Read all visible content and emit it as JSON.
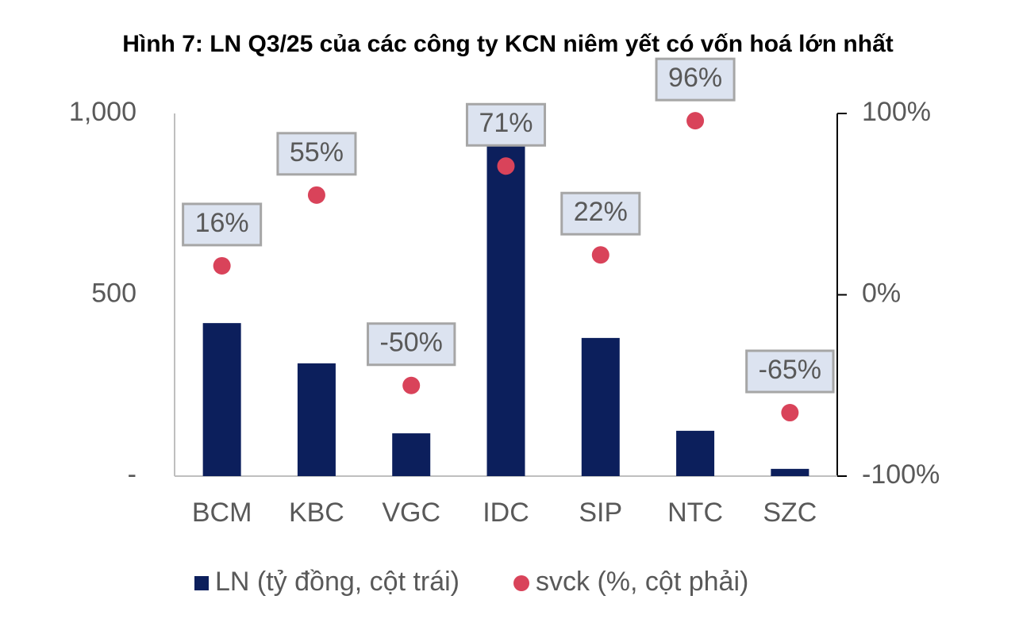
{
  "chart_data": {
    "type": "bar",
    "title": "Hình 7: LN Q3/25 của các công ty KCN niêm yết có vốn hoá lớn nhất",
    "categories": [
      "BCM",
      "KBC",
      "VGC",
      "IDC",
      "SIP",
      "NTC",
      "SZC"
    ],
    "series": [
      {
        "name": "LN (tỷ đồng, cột trái)",
        "type": "bar",
        "color": "#0c1f5c",
        "values": [
          422,
          311,
          118,
          930,
          381,
          125,
          20
        ]
      },
      {
        "name": "svck (%, cột phải)",
        "type": "scatter",
        "axis": "y2",
        "color": "#d9435a",
        "values": [
          16,
          55,
          -50,
          71,
          22,
          96,
          -65
        ],
        "value_labels": [
          "16%",
          "55%",
          "-50%",
          "71%",
          "22%",
          "96%",
          "-65%"
        ]
      }
    ],
    "ylim": [
      0,
      1000
    ],
    "yticks": [
      {
        "value": 0,
        "label": "-"
      },
      500,
      {
        "value": 1000,
        "label": "1,000"
      }
    ],
    "y2lim": [
      -100,
      100
    ],
    "y2ticks": [
      {
        "value": -100,
        "label": "-100%"
      },
      {
        "value": 0,
        "label": "0%"
      },
      {
        "value": 100,
        "label": "100%"
      }
    ],
    "legend": "bottom"
  }
}
